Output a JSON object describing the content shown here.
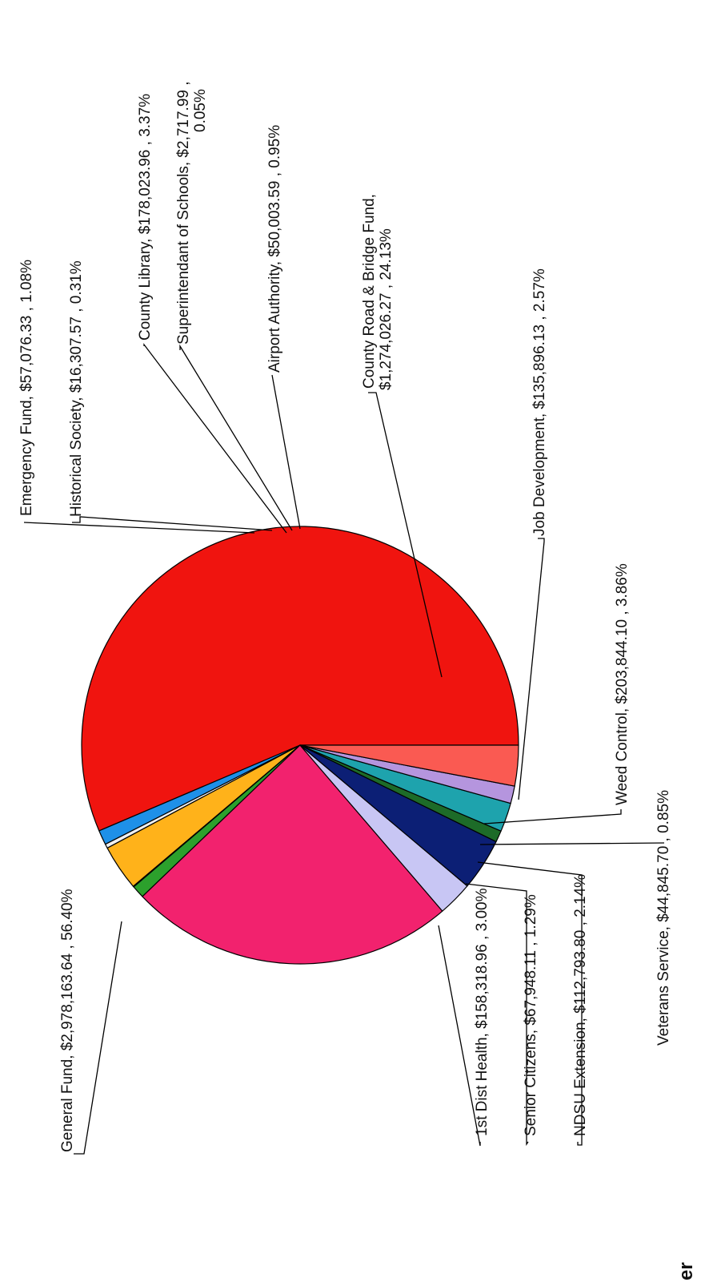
{
  "chart_data": {
    "type": "pie",
    "title": "",
    "slices": [
      {
        "label": "General Fund",
        "value": 2978163.64,
        "value_text": "$2,978,163.64",
        "percent": 56.4,
        "percent_text": "56.40%",
        "color": "#f0140f"
      },
      {
        "label": "Emergency Fund",
        "value": 57076.33,
        "value_text": "$57,076.33",
        "percent": 1.08,
        "percent_text": "1.08%",
        "color": "#1e90e8"
      },
      {
        "label": "Historical Society",
        "value": 16307.57,
        "value_text": "$16,307.57",
        "percent": 0.31,
        "percent_text": "0.31%",
        "color": "#f0f0f0"
      },
      {
        "label": "County Library",
        "value": 178023.96,
        "value_text": "$178,023.96",
        "percent": 3.37,
        "percent_text": "3.37%",
        "color": "#ffb21a"
      },
      {
        "label": "Superintendant of Schools",
        "value": 2717.99,
        "value_text": "$2,717.99",
        "percent": 0.05,
        "percent_text": "0.05%",
        "color": "#ff7a7a"
      },
      {
        "label": "Airport Authority",
        "value": 50003.59,
        "value_text": "$50,003.59",
        "percent": 0.95,
        "percent_text": "0.95%",
        "color": "#2ca02c"
      },
      {
        "label": "County Road & Bridge Fund",
        "value": 1274026.27,
        "value_text": "$1,274,026.27",
        "percent": 24.13,
        "percent_text": "24.13%",
        "color": "#f2226e"
      },
      {
        "label": "Job Development",
        "value": 135896.13,
        "value_text": "$135,896.13",
        "percent": 2.57,
        "percent_text": "2.57%",
        "color": "#c8c6f4"
      },
      {
        "label": "Weed Control",
        "value": 203844.1,
        "value_text": "$203,844.10",
        "percent": 3.86,
        "percent_text": "3.86%",
        "color": "#0c1f75"
      },
      {
        "label": "Veterans Service",
        "value": 44845.7,
        "value_text": "$44,845.70",
        "percent": 0.85,
        "percent_text": "0.85%",
        "color": "#1d6b28"
      },
      {
        "label": "NDSU Extension",
        "value": 112793.8,
        "value_text": "$112,793.80",
        "percent": 2.14,
        "percent_text": "2.14%",
        "color": "#1ea3ad"
      },
      {
        "label": "Senior Citizens",
        "value": 67948.11,
        "value_text": "$67,948.11",
        "percent": 1.29,
        "percent_text": "1.29%",
        "color": "#b595de"
      },
      {
        "label": "1st Dist Health",
        "value": 158318.96,
        "value_text": "$158,318.96",
        "percent": 3.0,
        "percent_text": "3.00%",
        "color": "#fa5a52"
      }
    ],
    "labels": [
      "General Fund, $2,978,163.64 , 56.40%",
      "Emergency Fund, $57,076.33 , 1.08%",
      "Historical Society, $16,307.57 , 0.31%",
      "County Library, $178,023.96 , 3.37%",
      "Superintendant of Schools, $2,717.99 ,",
      "0.05%",
      "Airport Authority, $50,003.59 , 0.95%",
      "County Road & Bridge Fund,",
      "$1,274,026.27 , 24.13%",
      "Job Development, $135,896.13 , 2.57%",
      "Weed Control, $203,844.10 , 3.86%",
      "Veterans Service, $44,845.70 , 0.85%",
      "NDSU Extension, $112,793.80 , 2.14%",
      "Senior Citizens, $67,948.11 , 1.29%",
      "1st Dist Health, $158,318.96 , 3.00%"
    ],
    "corner_text": "er"
  }
}
